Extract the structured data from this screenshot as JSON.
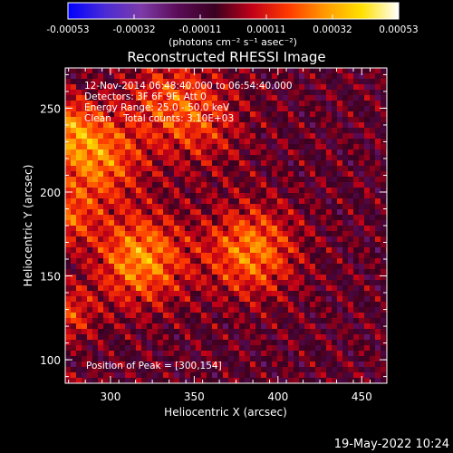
{
  "chart_data": {
    "type": "heatmap",
    "title": "Reconstructed RHESSI Image",
    "xlabel": "Heliocentric X (arcsec)",
    "ylabel": "Heliocentric Y (arcsec)",
    "xlim": [
      273,
      465
    ],
    "ylim": [
      86,
      274
    ],
    "x_ticks": [
      300,
      350,
      400,
      450
    ],
    "y_ticks": [
      100,
      150,
      200,
      250
    ],
    "colorbar": {
      "ticks": [
        "-0.00053",
        "-0.00032",
        "-0.00011",
        "0.00011",
        "0.00032",
        "0.00053"
      ],
      "range": [
        -0.00053,
        0.00053
      ],
      "unit_label": "(photons cm⁻² s⁻¹ asec⁻²)",
      "colormap": [
        "#0000ff",
        "#4a2bd6",
        "#7d3ba8",
        "#5a0b56",
        "#3a0020",
        "#c00018",
        "#ff3a00",
        "#ff9a00",
        "#ffe000",
        "#ffffff"
      ]
    },
    "annotations": [
      "12-Nov-2014 06:48:40.000 to 06:54:40.000",
      "Detectors: 3F 6F 9F, Att 0",
      "Energy Range: 25.0 - 50.0 keV",
      "Clean    Total counts: 3.10E+03"
    ],
    "peak_label": "Position of Peak = [300,154]",
    "peak": [
      300,
      154
    ],
    "bright_sources": [
      {
        "x": 290,
        "y": 220,
        "relative": 0.95
      },
      {
        "x": 318,
        "y": 160,
        "relative": 1.0
      },
      {
        "x": 384,
        "y": 165,
        "relative": 0.9
      },
      {
        "x": 335,
        "y": 255,
        "relative": 0.55
      },
      {
        "x": 355,
        "y": 240,
        "relative": 0.4
      }
    ],
    "grid": false
  },
  "timestamp": "19-May-2022 10:24"
}
